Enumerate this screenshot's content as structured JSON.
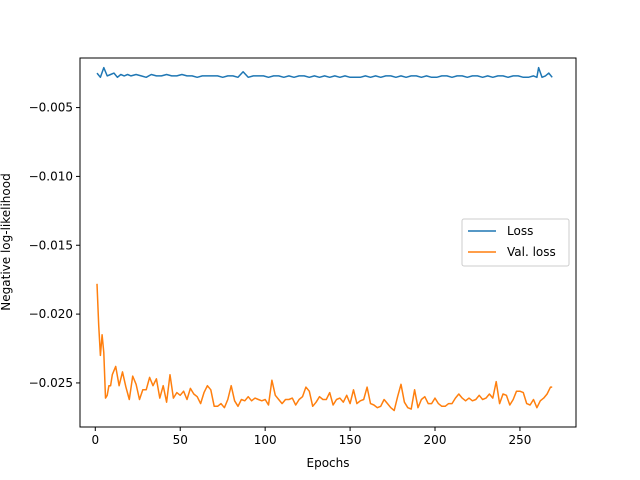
{
  "chart_data": {
    "type": "line",
    "title": "",
    "xlabel": "Epochs",
    "ylabel": "Negative log-likelihood",
    "xlim": [
      -9,
      283
    ],
    "ylim": [
      -0.0282,
      -0.0014
    ],
    "xticks": [
      0,
      50,
      100,
      150,
      200,
      250
    ],
    "xtick_labels": [
      "0",
      "50",
      "100",
      "150",
      "200",
      "250"
    ],
    "yticks": [
      -0.025,
      -0.02,
      -0.015,
      -0.01,
      -0.005
    ],
    "ytick_labels": [
      "−0.025",
      "−0.020",
      "−0.015",
      "−0.010",
      "−0.005"
    ],
    "grid": false,
    "legend_position": "center-right",
    "series": [
      {
        "name": "Loss",
        "color": "#1f77b4",
        "x": [
          1,
          3,
          5,
          7,
          9,
          11,
          13,
          15,
          17,
          19,
          21,
          24,
          27,
          30,
          33,
          36,
          39,
          42,
          45,
          48,
          51,
          54,
          57,
          60,
          63,
          66,
          69,
          72,
          75,
          78,
          81,
          84,
          87,
          90,
          93,
          96,
          99,
          102,
          105,
          108,
          111,
          114,
          117,
          120,
          123,
          126,
          129,
          132,
          135,
          138,
          141,
          144,
          147,
          150,
          153,
          156,
          159,
          162,
          165,
          168,
          171,
          174,
          177,
          180,
          183,
          186,
          189,
          192,
          195,
          198,
          201,
          204,
          207,
          210,
          213,
          216,
          219,
          222,
          225,
          228,
          231,
          234,
          237,
          240,
          243,
          246,
          249,
          252,
          255,
          258,
          260,
          261,
          263,
          265,
          267,
          269
        ],
        "y": [
          -0.0025,
          -0.0028,
          -0.0021,
          -0.0027,
          -0.0026,
          -0.0025,
          -0.0028,
          -0.0026,
          -0.0027,
          -0.0026,
          -0.0027,
          -0.0026,
          -0.0027,
          -0.0028,
          -0.0026,
          -0.0027,
          -0.0027,
          -0.0026,
          -0.0027,
          -0.0027,
          -0.0026,
          -0.0027,
          -0.0027,
          -0.0028,
          -0.0027,
          -0.0027,
          -0.0027,
          -0.0027,
          -0.0028,
          -0.0027,
          -0.0027,
          -0.0028,
          -0.0024,
          -0.0028,
          -0.0027,
          -0.0027,
          -0.0027,
          -0.0028,
          -0.0027,
          -0.0027,
          -0.0028,
          -0.0027,
          -0.0028,
          -0.0027,
          -0.0027,
          -0.0028,
          -0.0027,
          -0.0028,
          -0.0027,
          -0.0028,
          -0.0027,
          -0.0028,
          -0.0027,
          -0.0028,
          -0.0028,
          -0.0028,
          -0.0027,
          -0.0028,
          -0.0027,
          -0.0028,
          -0.0027,
          -0.0027,
          -0.0028,
          -0.0027,
          -0.0028,
          -0.0027,
          -0.0027,
          -0.0028,
          -0.0027,
          -0.0028,
          -0.0028,
          -0.0027,
          -0.0027,
          -0.0028,
          -0.0027,
          -0.0027,
          -0.0028,
          -0.0027,
          -0.0027,
          -0.0028,
          -0.0027,
          -0.0028,
          -0.0027,
          -0.0027,
          -0.0028,
          -0.0027,
          -0.0027,
          -0.0028,
          -0.0028,
          -0.0027,
          -0.0028,
          -0.0021,
          -0.0028,
          -0.0027,
          -0.0025,
          -0.0028
        ]
      },
      {
        "name": "Val. loss",
        "color": "#ff7f0e",
        "x": [
          1,
          2,
          3,
          4,
          5,
          6,
          7,
          8,
          9,
          10,
          12,
          14,
          16,
          18,
          20,
          22,
          24,
          26,
          28,
          30,
          32,
          34,
          36,
          38,
          40,
          42,
          44,
          46,
          48,
          50,
          52,
          54,
          56,
          58,
          60,
          62,
          64,
          66,
          68,
          70,
          72,
          74,
          76,
          78,
          80,
          82,
          84,
          86,
          88,
          90,
          92,
          94,
          96,
          98,
          100,
          102,
          104,
          106,
          108,
          110,
          112,
          114,
          116,
          118,
          120,
          122,
          124,
          126,
          128,
          130,
          132,
          134,
          136,
          138,
          140,
          142,
          144,
          146,
          148,
          150,
          152,
          154,
          156,
          158,
          160,
          162,
          164,
          166,
          168,
          170,
          172,
          174,
          176,
          178,
          180,
          182,
          184,
          186,
          188,
          190,
          192,
          194,
          196,
          198,
          200,
          202,
          204,
          206,
          208,
          210,
          212,
          214,
          216,
          218,
          220,
          222,
          224,
          226,
          228,
          230,
          232,
          234,
          236,
          238,
          240,
          242,
          244,
          246,
          248,
          250,
          252,
          254,
          256,
          258,
          260,
          262,
          264,
          266,
          268,
          269
        ],
        "y": [
          -0.0178,
          -0.0208,
          -0.023,
          -0.0215,
          -0.0228,
          -0.0261,
          -0.0259,
          -0.0252,
          -0.0252,
          -0.0244,
          -0.0238,
          -0.0252,
          -0.0242,
          -0.0253,
          -0.0262,
          -0.0245,
          -0.0251,
          -0.0262,
          -0.0255,
          -0.0255,
          -0.0246,
          -0.0252,
          -0.0247,
          -0.0261,
          -0.0252,
          -0.0264,
          -0.0244,
          -0.0261,
          -0.0257,
          -0.0259,
          -0.0256,
          -0.0262,
          -0.0254,
          -0.0258,
          -0.026,
          -0.0265,
          -0.0257,
          -0.0252,
          -0.0255,
          -0.0267,
          -0.0267,
          -0.0265,
          -0.0268,
          -0.0262,
          -0.0252,
          -0.0263,
          -0.0267,
          -0.0262,
          -0.0263,
          -0.026,
          -0.0263,
          -0.0261,
          -0.0262,
          -0.0263,
          -0.0262,
          -0.0266,
          -0.0248,
          -0.0259,
          -0.0262,
          -0.0265,
          -0.0262,
          -0.0262,
          -0.0261,
          -0.0266,
          -0.0262,
          -0.026,
          -0.0253,
          -0.0256,
          -0.0267,
          -0.0264,
          -0.026,
          -0.0262,
          -0.0262,
          -0.0257,
          -0.0266,
          -0.0262,
          -0.0261,
          -0.0264,
          -0.0259,
          -0.0265,
          -0.0255,
          -0.0265,
          -0.0263,
          -0.0262,
          -0.0253,
          -0.0265,
          -0.0266,
          -0.0268,
          -0.0267,
          -0.0262,
          -0.0265,
          -0.0268,
          -0.027,
          -0.026,
          -0.0251,
          -0.0264,
          -0.0268,
          -0.0269,
          -0.0255,
          -0.0268,
          -0.0262,
          -0.026,
          -0.0265,
          -0.0265,
          -0.0261,
          -0.0265,
          -0.0267,
          -0.0267,
          -0.0265,
          -0.0265,
          -0.0261,
          -0.0258,
          -0.0261,
          -0.0263,
          -0.0261,
          -0.0263,
          -0.0262,
          -0.0259,
          -0.0262,
          -0.0261,
          -0.0258,
          -0.0261,
          -0.0249,
          -0.0265,
          -0.0258,
          -0.0259,
          -0.0266,
          -0.0262,
          -0.0256,
          -0.0256,
          -0.0257,
          -0.0265,
          -0.0266,
          -0.0262,
          -0.0268,
          -0.0263,
          -0.0261,
          -0.0258,
          -0.0253,
          -0.0253
        ]
      }
    ]
  }
}
